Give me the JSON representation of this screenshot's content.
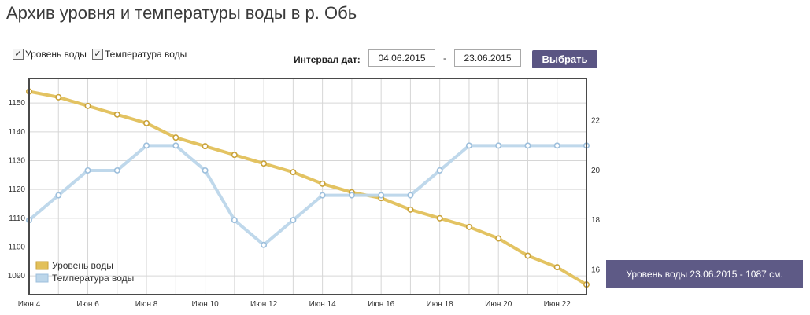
{
  "page": {
    "title": "Архив уровня и температуры воды в р. Обь"
  },
  "controls": {
    "checkbox_level": {
      "label": "Уровень воды",
      "checked": true
    },
    "checkbox_temp": {
      "label": "Температура воды",
      "checked": true
    },
    "interval_label": "Интервал дат:",
    "date_from": "04.06.2015",
    "date_separator": "-",
    "date_to": "23.06.2015",
    "select_button": "Выбрать"
  },
  "tooltip": {
    "text": "Уровень воды 23.06.2015 - 1087 см."
  },
  "chart_data": {
    "type": "line",
    "x_tick_labels": [
      "Июн 4",
      "Июн 6",
      "Июн 8",
      "Июн 10",
      "Июн 12",
      "Июн 14",
      "Июн 16",
      "Июн 18",
      "Июн 20",
      "Июн 22"
    ],
    "x_range": [
      "04.06.2015",
      "23.06.2015"
    ],
    "dates": [
      "04.06",
      "05.06",
      "06.06",
      "07.06",
      "08.06",
      "09.06",
      "10.06",
      "11.06",
      "12.06",
      "13.06",
      "14.06",
      "15.06",
      "16.06",
      "17.06",
      "18.06",
      "19.06",
      "20.06",
      "21.06",
      "22.06",
      "23.06"
    ],
    "series": [
      {
        "name": "Уровень воды",
        "axis": "left",
        "color": "#e2c05a",
        "values": [
          1154,
          1152,
          1149,
          1146,
          1143,
          1138,
          1135,
          1132,
          1129,
          1126,
          1122,
          1119,
          1117,
          1113,
          1110,
          1107,
          1103,
          1097,
          1093,
          1087
        ]
      },
      {
        "name": "Температура воды",
        "axis": "right",
        "color": "#bcd6ea",
        "values": [
          18,
          19,
          20,
          20,
          21,
          21,
          20,
          18,
          17,
          18,
          19,
          19,
          19,
          19,
          20,
          21,
          21,
          21,
          21,
          21
        ]
      }
    ],
    "y_left": {
      "ticks": [
        1090,
        1100,
        1110,
        1120,
        1130,
        1140,
        1150
      ],
      "range": [
        1083.5,
        1158.5
      ]
    },
    "y_right": {
      "ticks": [
        16,
        18,
        20,
        22
      ],
      "range": [
        15.0,
        23.7
      ]
    },
    "grid": true,
    "legend_position": "bottom-left"
  }
}
